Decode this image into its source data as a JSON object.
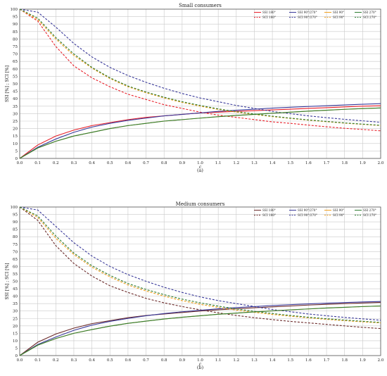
{
  "chart_data": [
    {
      "type": "line",
      "title": "Small consumers",
      "caption": "(a)",
      "xlabel": "c",
      "ylabel": "SSI [%] ; SCI [%]",
      "xlim": [
        0,
        2.0
      ],
      "ylim": [
        0,
        100
      ],
      "xticks": [
        0.0,
        0.1,
        0.2,
        0.3,
        0.4,
        0.5,
        0.6,
        0.7,
        0.8,
        0.9,
        1.0,
        1.1,
        1.2,
        1.3,
        1.4,
        1.5,
        1.6,
        1.7,
        1.8,
        1.9,
        2.0
      ],
      "yticks": [
        0,
        5,
        10,
        15,
        20,
        25,
        30,
        35,
        40,
        45,
        50,
        55,
        60,
        65,
        70,
        75,
        80,
        85,
        90,
        95,
        100
      ],
      "grid": true,
      "legend_position": "top-right",
      "x": [
        0.0,
        0.1,
        0.2,
        0.3,
        0.4,
        0.5,
        0.6,
        0.7,
        0.8,
        0.9,
        1.0,
        1.1,
        1.2,
        1.3,
        1.4,
        1.5,
        1.6,
        1.7,
        1.8,
        1.9,
        2.0
      ],
      "series": [
        {
          "name": "SSI 180°",
          "color": "#e8202a",
          "dash": false,
          "values": [
            0,
            9,
            15,
            19,
            22,
            24,
            26,
            27.5,
            28.5,
            29.5,
            30.5,
            31,
            31.5,
            32,
            32.5,
            33,
            33.5,
            34,
            34.5,
            35,
            35.3
          ]
        },
        {
          "name": "SCI 180°",
          "color": "#e8202a",
          "dash": true,
          "values": [
            100,
            92,
            75,
            62,
            54,
            48,
            43,
            39.5,
            36,
            33.5,
            31,
            29,
            27.5,
            26,
            24.5,
            23.5,
            22.3,
            21.2,
            20.2,
            19.4,
            18.5
          ]
        },
        {
          "name": "SSI 90°/270°",
          "color": "#3a3a9a",
          "dash": false,
          "values": [
            0,
            7.5,
            13,
            17.5,
            21,
            23.5,
            25.5,
            27,
            28.5,
            29.5,
            30.5,
            31.5,
            32.3,
            33,
            33.7,
            34.3,
            34.8,
            35.3,
            35.8,
            36.3,
            36.7
          ]
        },
        {
          "name": "SCI 90°/270°",
          "color": "#3a3a9a",
          "dash": true,
          "values": [
            100,
            98,
            88,
            77,
            68,
            61,
            55.5,
            51,
            47,
            43.5,
            40.5,
            38,
            35.5,
            33.5,
            31.5,
            30,
            28.5,
            27.3,
            26.2,
            25.2,
            24.2
          ]
        },
        {
          "name": "SSI 90°",
          "color": "#f0a020",
          "dash": false,
          "values": [
            0,
            7,
            11.5,
            15,
            17.5,
            20,
            22,
            23.5,
            25,
            26,
            27,
            28,
            28.8,
            29.5,
            30.3,
            31,
            31.7,
            32.3,
            32.9,
            33.4,
            33.8
          ]
        },
        {
          "name": "SCI 90°",
          "color": "#f0a020",
          "dash": true,
          "values": [
            100,
            93,
            80,
            69,
            60.5,
            53.5,
            48,
            44,
            40.5,
            37.5,
            35,
            32.8,
            31,
            29.5,
            28,
            26.8,
            25.6,
            24.6,
            23.6,
            22.8,
            22
          ]
        },
        {
          "name": "SSI 270°",
          "color": "#2e7d32",
          "dash": false,
          "values": [
            0,
            7,
            11.5,
            15,
            17.5,
            20,
            22,
            23.5,
            25,
            26,
            27,
            28,
            28.8,
            29.5,
            30.3,
            31,
            31.7,
            32.3,
            32.9,
            33.4,
            33.8
          ]
        },
        {
          "name": "SCI 270°",
          "color": "#2e7d32",
          "dash": true,
          "values": [
            100,
            94,
            81,
            70,
            61,
            54,
            48.5,
            44.5,
            41,
            38,
            35.5,
            33.2,
            31.4,
            29.8,
            28.3,
            27,
            25.8,
            24.8,
            23.8,
            23,
            22.2
          ]
        }
      ]
    },
    {
      "type": "line",
      "title": "Medium consumers",
      "caption": "(b)",
      "xlabel": "c",
      "ylabel": "SSI [%] ; SCI [%]",
      "xlim": [
        0,
        2.0
      ],
      "ylim": [
        0,
        100
      ],
      "xticks": [
        0.0,
        0.1,
        0.2,
        0.3,
        0.4,
        0.5,
        0.6,
        0.7,
        0.8,
        0.9,
        1.0,
        1.1,
        1.2,
        1.3,
        1.4,
        1.5,
        1.6,
        1.7,
        1.8,
        1.9,
        2.0
      ],
      "yticks": [
        0,
        5,
        10,
        15,
        20,
        25,
        30,
        35,
        40,
        45,
        50,
        55,
        60,
        65,
        70,
        75,
        80,
        85,
        90,
        95,
        100
      ],
      "grid": true,
      "legend_position": "top-right",
      "x": [
        0.0,
        0.1,
        0.2,
        0.3,
        0.4,
        0.5,
        0.6,
        0.7,
        0.8,
        0.9,
        1.0,
        1.1,
        1.2,
        1.3,
        1.4,
        1.5,
        1.6,
        1.7,
        1.8,
        1.9,
        2.0
      ],
      "series": [
        {
          "name": "SSI 180°",
          "color": "#6b2a2a",
          "dash": false,
          "values": [
            0,
            9,
            14.5,
            18.5,
            21.5,
            23.5,
            25.5,
            27,
            28,
            29,
            30,
            30.8,
            31.5,
            32.2,
            32.8,
            33.4,
            34,
            34.5,
            35,
            35.4,
            35.8
          ]
        },
        {
          "name": "SCI 180°",
          "color": "#6b2a2a",
          "dash": true,
          "values": [
            100,
            91,
            74,
            62,
            53.5,
            47,
            42.5,
            38.5,
            35.5,
            33,
            30.8,
            28.8,
            27,
            25.5,
            24.2,
            23,
            22,
            21,
            20,
            19,
            18.2
          ]
        },
        {
          "name": "SSI 90°/270°",
          "color": "#3a3a9a",
          "dash": false,
          "values": [
            0,
            7.5,
            12.5,
            17,
            20.5,
            23,
            25,
            26.8,
            28.3,
            29.5,
            30.5,
            31.5,
            32.3,
            33,
            33.7,
            34.3,
            34.8,
            35.3,
            35.7,
            36.1,
            36.4
          ]
        },
        {
          "name": "SCI 90°/270°",
          "color": "#3a3a9a",
          "dash": true,
          "values": [
            100,
            98,
            87,
            76,
            67,
            60,
            54.5,
            50,
            46,
            42.5,
            39.5,
            37,
            35,
            33,
            31,
            29.5,
            28,
            26.8,
            25.7,
            24.7,
            23.8
          ]
        },
        {
          "name": "SSI 90°",
          "color": "#f0a020",
          "dash": false,
          "values": [
            0,
            7,
            11.5,
            15,
            17.5,
            19.8,
            21.7,
            23.2,
            24.6,
            25.8,
            26.8,
            27.8,
            28.6,
            29.4,
            30.1,
            30.8,
            31.4,
            32,
            32.5,
            33,
            33.4
          ]
        },
        {
          "name": "SCI 90°",
          "color": "#f0a020",
          "dash": true,
          "values": [
            100,
            93,
            79,
            68,
            59.5,
            53,
            47.5,
            43.5,
            40,
            37,
            34.5,
            32.4,
            30.6,
            29.1,
            27.7,
            26.5,
            25.4,
            24.4,
            23.5,
            22.7,
            22
          ]
        },
        {
          "name": "SSI 270°",
          "color": "#2e7d32",
          "dash": false,
          "values": [
            0,
            7,
            11.5,
            15,
            17.5,
            19.8,
            21.7,
            23.2,
            24.6,
            25.8,
            26.8,
            27.8,
            28.6,
            29.4,
            30.1,
            30.8,
            31.4,
            32,
            32.5,
            33,
            33.4
          ]
        },
        {
          "name": "SCI 270°",
          "color": "#2e7d32",
          "dash": true,
          "values": [
            100,
            94,
            80.5,
            69,
            60.5,
            54,
            48.5,
            44.5,
            41,
            38,
            35.5,
            33.3,
            31.4,
            29.8,
            28.3,
            27,
            25.8,
            24.8,
            23.9,
            23.1,
            22.3
          ]
        }
      ]
    }
  ]
}
